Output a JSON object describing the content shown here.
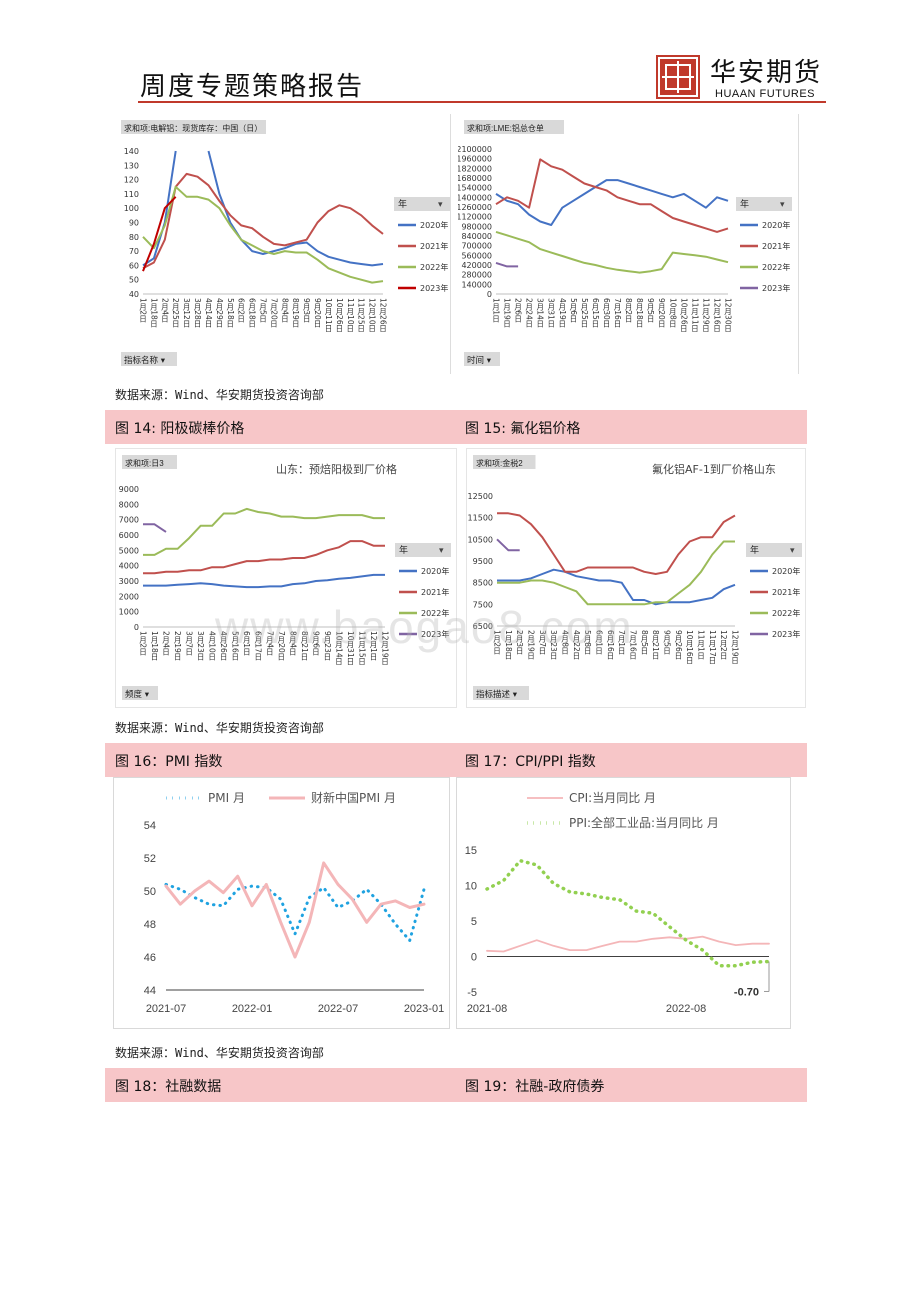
{
  "header": {
    "title": "周度专题策略报告",
    "logo_cn": "华安期货",
    "logo_en": "HUAAN FUTURES"
  },
  "colors": {
    "c2020": "#4472c4",
    "c2021": "#c0504d",
    "c2022": "#9bbb59",
    "c2023": "#c00000",
    "c2023b": "#8064a2",
    "brand": "#c0392b",
    "caption_bg": "#f7c6c8"
  },
  "source_text": "数据来源：Wind、华安期货投资咨询部",
  "captions": [
    {
      "left": "图 14: 阳极碳棒价格",
      "right": "图 15: 氟化铝价格"
    },
    {
      "left": "图 16：PMI 指数",
      "right": "图 17：CPI/PPI 指数"
    },
    {
      "left": "图 18：社融数据",
      "right": "图 19：社融-政府债券"
    }
  ],
  "chart_data": [
    {
      "id": "chart1",
      "type": "line",
      "pivot_tag": "求和项:电解铝：现货库存：中国（日）",
      "filter_tag": "指标名称",
      "legend_title": "年",
      "ylim": [
        40,
        140
      ],
      "yticks": [
        40,
        50,
        60,
        70,
        80,
        90,
        100,
        110,
        120,
        130,
        140
      ],
      "x_ticklabels": [
        "1月2日",
        "1月18日",
        "2月4日",
        "2月25日",
        "3月12日",
        "3月28日",
        "4月14日",
        "4月29日",
        "5月18日",
        "6月2日",
        "6月18日",
        "7月5日",
        "7月20日",
        "8月4日",
        "8月19日",
        "9月3日",
        "9月20日",
        "10月11日",
        "10月26日",
        "11月10日",
        "11月25日",
        "12月10日",
        "12月26日"
      ],
      "series": [
        {
          "name": "2020年",
          "x": [
            0,
            1,
            2,
            3,
            4,
            5,
            6,
            7,
            8,
            9,
            10,
            11,
            12,
            13,
            14,
            15,
            16,
            17,
            18,
            19,
            20,
            21,
            22
          ],
          "values": [
            60,
            65,
            90,
            140,
            null,
            null,
            140,
            110,
            90,
            78,
            70,
            68,
            70,
            72,
            75,
            76,
            70,
            66,
            64,
            62,
            61,
            60,
            61
          ]
        },
        {
          "name": "2021年",
          "x": [
            0,
            1,
            2,
            3,
            4,
            5,
            6,
            7,
            8,
            9,
            10,
            11,
            12,
            13,
            14,
            15,
            16,
            17,
            18,
            19,
            20,
            21,
            22
          ],
          "values": [
            58,
            62,
            78,
            115,
            124,
            122,
            116,
            105,
            95,
            88,
            86,
            80,
            75,
            74,
            76,
            78,
            90,
            98,
            102,
            100,
            95,
            88,
            82
          ]
        },
        {
          "name": "2022年",
          "x": [
            0,
            1,
            2,
            3,
            4,
            5,
            6,
            7,
            8,
            9,
            10,
            11,
            12,
            13,
            14,
            15,
            16,
            17,
            18,
            19,
            20,
            21,
            22
          ],
          "values": [
            80,
            72,
            88,
            115,
            108,
            108,
            106,
            100,
            88,
            78,
            74,
            70,
            68,
            70,
            69,
            69,
            64,
            58,
            55,
            52,
            50,
            48,
            49
          ]
        },
        {
          "name": "2023年",
          "x": [
            0,
            1,
            2,
            3
          ],
          "values": [
            56,
            75,
            100,
            108
          ]
        }
      ]
    },
    {
      "id": "chart2",
      "type": "line",
      "pivot_tag": "求和项:LME:铝总仓单",
      "filter_tag": "时间",
      "legend_title": "年",
      "ylim": [
        0,
        2100000
      ],
      "yticks": [
        0,
        140000,
        280000,
        420000,
        560000,
        700000,
        840000,
        980000,
        1120000,
        1260000,
        1400000,
        1540000,
        1680000,
        1820000,
        1960000,
        2100000
      ],
      "x_ticklabels": [
        "1月1日",
        "1月19日",
        "2月6日",
        "2月24日",
        "3月14日",
        "3月31日",
        "4月19日",
        "5月6日",
        "5月25日",
        "6月15日",
        "6月30日",
        "7月16日",
        "8月2日",
        "8月18日",
        "9月5日",
        "9月20日",
        "10月8日",
        "10月26日",
        "11月11日",
        "11月29日",
        "12月16日",
        "12月30日"
      ],
      "series": [
        {
          "name": "2020年",
          "x": [
            0,
            1,
            2,
            3,
            4,
            5,
            6,
            7,
            8,
            9,
            10,
            11,
            12,
            13,
            14,
            15,
            16,
            17,
            18,
            19,
            20,
            21
          ],
          "values": [
            1450000,
            1350000,
            1300000,
            1150000,
            1050000,
            1000000,
            1250000,
            1350000,
            1450000,
            1550000,
            1650000,
            1650000,
            1600000,
            1550000,
            1500000,
            1450000,
            1400000,
            1450000,
            1350000,
            1250000,
            1400000,
            1350000
          ]
        },
        {
          "name": "2021年",
          "x": [
            0,
            1,
            2,
            3,
            4,
            5,
            6,
            7,
            8,
            9,
            10,
            11,
            12,
            13,
            14,
            15,
            16,
            17,
            18,
            19,
            20,
            21
          ],
          "values": [
            1300000,
            1400000,
            1350000,
            1250000,
            1950000,
            1850000,
            1800000,
            1700000,
            1600000,
            1550000,
            1500000,
            1400000,
            1350000,
            1300000,
            1300000,
            1200000,
            1100000,
            1050000,
            1000000,
            950000,
            900000,
            950000
          ]
        },
        {
          "name": "2022年",
          "x": [
            0,
            1,
            2,
            3,
            4,
            5,
            6,
            7,
            8,
            9,
            10,
            11,
            12,
            13,
            14,
            15,
            16,
            17,
            18,
            19,
            20,
            21
          ],
          "values": [
            900000,
            850000,
            800000,
            750000,
            650000,
            600000,
            550000,
            500000,
            450000,
            420000,
            380000,
            350000,
            330000,
            310000,
            330000,
            360000,
            600000,
            580000,
            560000,
            540000,
            500000,
            460000
          ]
        },
        {
          "name": "2023年",
          "x": [
            0,
            1,
            2
          ],
          "values": [
            450000,
            400000,
            400000
          ]
        }
      ]
    },
    {
      "id": "chart3",
      "type": "line",
      "pivot_tag": "求和项:日3",
      "filter_tag": "频度",
      "legend_title": "年",
      "title": "山东：预焙阳极到厂价格",
      "ylim": [
        0,
        9000
      ],
      "yticks": [
        0,
        1000,
        2000,
        3000,
        4000,
        5000,
        6000,
        7000,
        8000,
        9000
      ],
      "x_ticklabels": [
        "1月2日",
        "1月18日",
        "2月4日",
        "2月19日",
        "3月7日",
        "3月23日",
        "4月10日",
        "4月26日",
        "5月16日",
        "6月1日",
        "6月17日",
        "7月4日",
        "7月20日",
        "8月4日",
        "8月21日",
        "9月6日",
        "9月23日",
        "10月14日",
        "10月31日",
        "11月15日",
        "12月1日",
        "12月19日"
      ],
      "series": [
        {
          "name": "2020年",
          "x": [
            0,
            1,
            2,
            3,
            4,
            5,
            6,
            7,
            8,
            9,
            10,
            11,
            12,
            13,
            14,
            15,
            16,
            17,
            18,
            19,
            20,
            21
          ],
          "values": [
            2700,
            2700,
            2700,
            2750,
            2800,
            2850,
            2800,
            2700,
            2650,
            2600,
            2600,
            2650,
            2650,
            2800,
            2850,
            3000,
            3050,
            3150,
            3200,
            3300,
            3400,
            3400
          ]
        },
        {
          "name": "2021年",
          "x": [
            0,
            1,
            2,
            3,
            4,
            5,
            6,
            7,
            8,
            9,
            10,
            11,
            12,
            13,
            14,
            15,
            16,
            17,
            18,
            19,
            20,
            21
          ],
          "values": [
            3500,
            3500,
            3600,
            3600,
            3700,
            3700,
            3900,
            3900,
            4100,
            4300,
            4300,
            4400,
            4400,
            4500,
            4500,
            4700,
            5000,
            5200,
            5600,
            5600,
            5300,
            5300
          ]
        },
        {
          "name": "2022年",
          "x": [
            0,
            1,
            2,
            3,
            4,
            5,
            6,
            7,
            8,
            9,
            10,
            11,
            12,
            13,
            14,
            15,
            16,
            17,
            18,
            19,
            20,
            21
          ],
          "values": [
            4700,
            4700,
            5100,
            5100,
            5800,
            6600,
            6600,
            7400,
            7400,
            7700,
            7500,
            7400,
            7200,
            7200,
            7100,
            7100,
            7200,
            7300,
            7300,
            7300,
            7100,
            7100
          ]
        },
        {
          "name": "2023年",
          "x": [
            0,
            1,
            2
          ],
          "values": [
            6700,
            6700,
            6200
          ]
        }
      ]
    },
    {
      "id": "chart4",
      "type": "line",
      "pivot_tag": "求和项:金税2",
      "filter_tag": "指标描述",
      "legend_title": "年",
      "title": "氟化铝AF-1到厂价格山东",
      "ylim": [
        6500,
        12500
      ],
      "yticks": [
        6500,
        7500,
        8500,
        9500,
        10500,
        11500,
        12500
      ],
      "x_ticklabels": [
        "1月2日",
        "1月18日",
        "2月3日",
        "2月19日",
        "3月7日",
        "3月23日",
        "4月8日",
        "4月22日",
        "5月8日",
        "6月1日",
        "6月16日",
        "7月1日",
        "7月16日",
        "8月5日",
        "8月21日",
        "9月5日",
        "9月26日",
        "10月16日",
        "11月1日",
        "11月17日",
        "12月2日",
        "12月19日"
      ],
      "series": [
        {
          "name": "2020年",
          "x": [
            0,
            1,
            2,
            3,
            4,
            5,
            6,
            7,
            8,
            9,
            10,
            11,
            12,
            13,
            14,
            15,
            16,
            17,
            18,
            19,
            20,
            21
          ],
          "values": [
            8600,
            8600,
            8600,
            8700,
            8900,
            9100,
            9000,
            8800,
            8700,
            8600,
            8600,
            8500,
            7700,
            7700,
            7500,
            7600,
            7600,
            7600,
            7700,
            7800,
            8200,
            8400
          ]
        },
        {
          "name": "2021年",
          "x": [
            0,
            1,
            2,
            3,
            4,
            5,
            6,
            7,
            8,
            9,
            10,
            11,
            12,
            13,
            14,
            15,
            16,
            17,
            18,
            19,
            20,
            21
          ],
          "values": [
            11700,
            11700,
            11600,
            11200,
            10600,
            9800,
            9000,
            9000,
            9200,
            9200,
            9200,
            9200,
            9200,
            9000,
            8900,
            9000,
            9800,
            10400,
            10600,
            10600,
            11300,
            11600
          ]
        },
        {
          "name": "2022年",
          "x": [
            0,
            1,
            2,
            3,
            4,
            5,
            6,
            7,
            8,
            9,
            10,
            11,
            12,
            13,
            14,
            15,
            16,
            17,
            18,
            19,
            20,
            21
          ],
          "values": [
            8500,
            8500,
            8500,
            8600,
            8600,
            8500,
            8300,
            8100,
            7500,
            7500,
            7500,
            7500,
            7500,
            7500,
            7600,
            7600,
            8000,
            8400,
            9000,
            9800,
            10400,
            10400
          ]
        },
        {
          "name": "2023年",
          "x": [
            0,
            1,
            2
          ],
          "values": [
            10500,
            10000,
            10000
          ]
        }
      ]
    },
    {
      "id": "chart5",
      "type": "line",
      "ylim": [
        44,
        54
      ],
      "yticks": [
        44,
        46,
        48,
        50,
        52,
        54
      ],
      "x_ticklabels": [
        "2021-07",
        "2022-01",
        "2022-07",
        "2023-01"
      ],
      "x_tickpos": [
        0,
        6,
        12,
        18
      ],
      "xmax": 18,
      "series": [
        {
          "name": "PMI 月",
          "x": [
            0,
            1,
            2,
            3,
            4,
            5,
            6,
            7,
            8,
            9,
            10,
            11,
            12,
            13,
            14,
            15,
            16,
            17,
            18
          ],
          "values": [
            50.4,
            50.1,
            49.6,
            49.2,
            49.1,
            50.1,
            50.3,
            50.2,
            49.5,
            47.4,
            49.6,
            50.2,
            49,
            49.4,
            50.1,
            49.2,
            48,
            47,
            50.1
          ]
        },
        {
          "name": "财新中国PMI 月",
          "x": [
            0,
            1,
            2,
            3,
            4,
            5,
            6,
            7,
            8,
            9,
            10,
            11,
            12,
            13,
            14,
            15,
            16,
            17,
            18
          ],
          "values": [
            50.3,
            49.2,
            50,
            50.6,
            49.9,
            50.9,
            49.1,
            50.4,
            48.1,
            46,
            48.1,
            51.7,
            50.4,
            49.5,
            48.1,
            49.2,
            49.4,
            49,
            49.2
          ]
        }
      ]
    },
    {
      "id": "chart6",
      "type": "line",
      "ylim": [
        -5,
        15
      ],
      "yticks": [
        -5,
        0,
        5,
        10,
        15
      ],
      "x_ticklabels": [
        "2021-08",
        "2022-08"
      ],
      "x_tickpos": [
        0,
        12
      ],
      "xmax": 17,
      "annotation": "-0.70",
      "series": [
        {
          "name": "CPI:当月同比 月",
          "x": [
            0,
            1,
            2,
            3,
            4,
            5,
            6,
            7,
            8,
            9,
            10,
            11,
            12,
            13,
            14,
            15,
            16,
            17
          ],
          "values": [
            0.8,
            0.7,
            1.5,
            2.3,
            1.5,
            0.9,
            0.9,
            1.5,
            2.1,
            2.1,
            2.5,
            2.7,
            2.5,
            2.8,
            2.1,
            1.6,
            1.8,
            1.8
          ]
        },
        {
          "name": "PPI:全部工业品:当月同比 月",
          "x": [
            0,
            1,
            2,
            3,
            4,
            5,
            6,
            7,
            8,
            9,
            10,
            11,
            12,
            13,
            14,
            15,
            16,
            17
          ],
          "values": [
            9.5,
            10.7,
            13.5,
            12.9,
            10.3,
            9.1,
            8.8,
            8.3,
            8,
            6.4,
            6.1,
            4.2,
            2.3,
            0.9,
            -1.3,
            -1.3,
            -0.8,
            -0.7
          ]
        }
      ]
    }
  ]
}
